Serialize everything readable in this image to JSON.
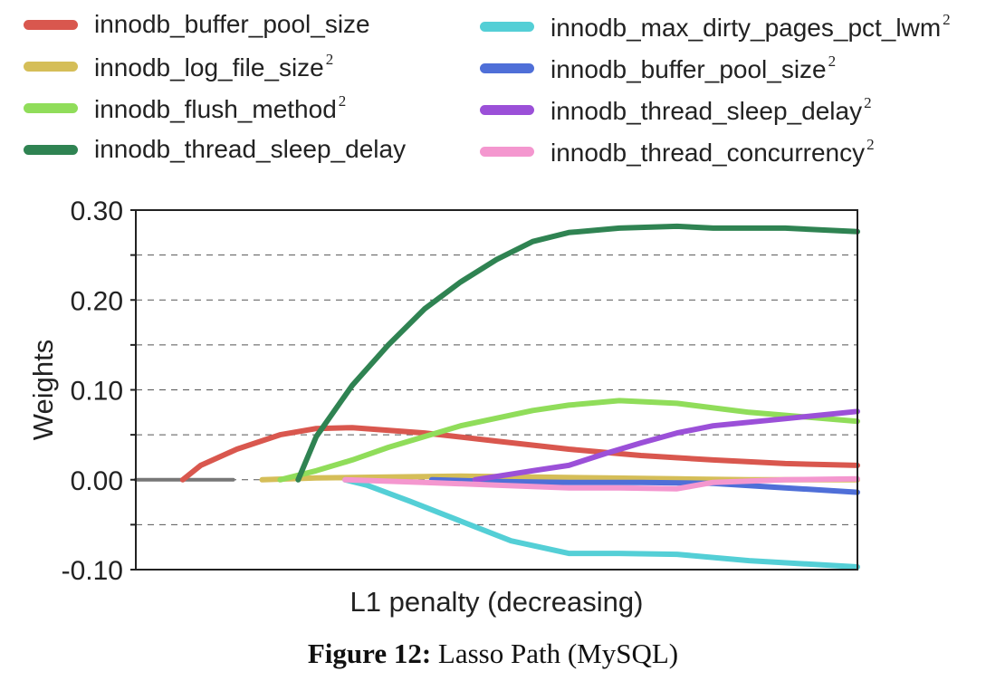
{
  "caption": {
    "label": "Figure 12:",
    "text": "Lasso Path (MySQL)"
  },
  "chart_data": {
    "type": "line",
    "xlabel": "L1 penalty (decreasing)",
    "ylabel": "Weights",
    "xlim": [
      0,
      100
    ],
    "ylim": [
      -0.1,
      0.3
    ],
    "yticks": [
      -0.1,
      0.0,
      0.1,
      0.2,
      0.3
    ],
    "ytick_labels": [
      "-0.10",
      "0.00",
      "0.10",
      "0.20",
      "0.30"
    ],
    "grid": "horizontal dashed",
    "legend": "top, two columns",
    "baseline": {
      "color": "#777777",
      "x": [
        0,
        13.5
      ],
      "y": [
        0,
        0
      ]
    },
    "series": [
      {
        "name": "innodb_buffer_pool_size",
        "sup": "",
        "color": "#d9574e",
        "x": [
          6.5,
          9,
          14,
          20,
          25,
          30,
          40,
          50,
          60,
          70,
          80,
          90,
          100
        ],
        "y": [
          0,
          0.016,
          0.034,
          0.05,
          0.057,
          0.058,
          0.052,
          0.043,
          0.034,
          0.027,
          0.022,
          0.018,
          0.016
        ]
      },
      {
        "name": "innodb_log_file_size",
        "sup": "2",
        "color": "#d5be58",
        "x": [
          17.5,
          25,
          35,
          45,
          55,
          65,
          75,
          85,
          100
        ],
        "y": [
          0,
          0.002,
          0.003,
          0.004,
          0.003,
          0.002,
          0.001,
          0.0,
          0.0
        ]
      },
      {
        "name": "innodb_flush_method",
        "sup": "2",
        "color": "#90dd5a",
        "x": [
          20,
          25,
          30,
          35,
          45,
          55,
          60,
          67,
          75,
          85,
          100
        ],
        "y": [
          0,
          0.01,
          0.022,
          0.036,
          0.06,
          0.077,
          0.083,
          0.088,
          0.085,
          0.075,
          0.065
        ]
      },
      {
        "name": "innodb_thread_sleep_delay",
        "sup": "",
        "color": "#2f8352",
        "x": [
          22.5,
          25,
          30,
          35,
          40,
          45,
          50,
          55,
          60,
          67,
          75,
          80,
          90,
          100
        ],
        "y": [
          0,
          0.048,
          0.105,
          0.15,
          0.19,
          0.22,
          0.245,
          0.265,
          0.275,
          0.28,
          0.282,
          0.28,
          0.28,
          0.276
        ]
      },
      {
        "name": "innodb_max_dirty_pages_pct_lwm",
        "sup": "2",
        "color": "#54cfd6",
        "x": [
          29,
          32,
          38,
          45,
          52,
          60,
          67,
          75,
          85,
          100
        ],
        "y": [
          0,
          -0.006,
          -0.024,
          -0.046,
          -0.068,
          -0.082,
          -0.082,
          -0.083,
          -0.09,
          -0.097
        ]
      },
      {
        "name": "innodb_buffer_pool_size",
        "sup": "2",
        "color": "#4f6fd8",
        "x": [
          41,
          50,
          60,
          70,
          80,
          90,
          100
        ],
        "y": [
          0,
          -0.002,
          -0.003,
          -0.003,
          -0.004,
          -0.009,
          -0.014
        ]
      },
      {
        "name": "innodb_thread_sleep_delay",
        "sup": "2",
        "color": "#9b50d8",
        "x": [
          47,
          55,
          60,
          65,
          70,
          75,
          80,
          90,
          100
        ],
        "y": [
          0,
          0.01,
          0.016,
          0.029,
          0.041,
          0.052,
          0.06,
          0.068,
          0.076
        ]
      },
      {
        "name": "innodb_thread_concurrency",
        "sup": "2",
        "color": "#f497cf",
        "x": [
          29,
          40,
          50,
          60,
          67,
          75,
          80,
          90,
          100
        ],
        "y": [
          0,
          -0.003,
          -0.006,
          -0.009,
          -0.009,
          -0.01,
          -0.003,
          0.0,
          0.001
        ]
      }
    ]
  }
}
